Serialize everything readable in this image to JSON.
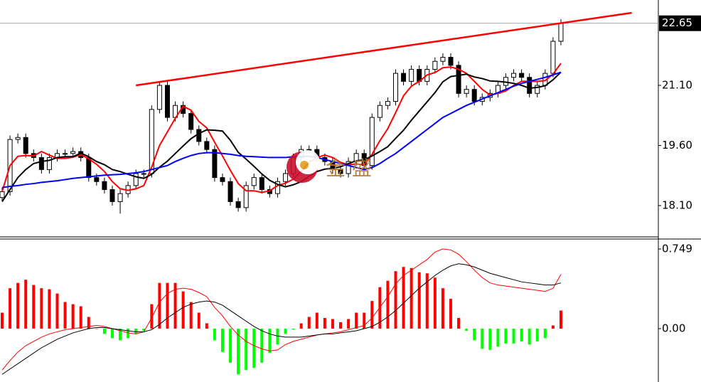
{
  "chart_data": [
    {
      "type": "candlestick",
      "open": [
        18.3,
        18.45,
        19.75,
        19.8,
        19.4,
        19.3,
        19.0,
        19.3,
        19.4,
        19.4,
        19.45,
        19.3,
        18.8,
        18.7,
        18.5,
        18.2,
        18.4,
        18.6,
        18.9,
        18.9,
        20.5,
        21.1,
        20.3,
        20.6,
        20.4,
        20.0,
        19.7,
        19.5,
        18.8,
        18.7,
        18.2,
        18.05,
        18.6,
        18.8,
        18.5,
        18.4,
        18.7,
        18.9,
        19.3,
        19.5,
        19.5,
        19.3,
        19.2,
        19.0,
        18.9,
        19.2,
        19.4,
        19.1,
        20.3,
        20.6,
        20.7,
        21.4,
        21.2,
        21.5,
        21.2,
        21.5,
        21.7,
        21.8,
        21.6,
        20.9,
        21.0,
        20.7,
        20.8,
        20.9,
        21.1,
        21.3,
        21.4,
        21.3,
        20.9,
        21.1,
        21.4,
        22.2
      ],
      "high": [
        18.55,
        19.85,
        19.9,
        19.9,
        19.5,
        19.4,
        19.4,
        19.5,
        19.5,
        19.55,
        19.55,
        19.4,
        18.9,
        18.8,
        18.6,
        18.5,
        18.7,
        19.0,
        19.0,
        20.6,
        21.2,
        21.2,
        20.7,
        20.7,
        20.5,
        20.1,
        19.8,
        19.6,
        18.9,
        18.8,
        18.3,
        18.7,
        18.9,
        18.9,
        18.6,
        18.8,
        19.0,
        19.4,
        19.6,
        19.6,
        19.6,
        19.4,
        19.3,
        19.1,
        19.3,
        19.5,
        19.5,
        20.4,
        20.7,
        20.8,
        21.5,
        21.5,
        21.6,
        21.6,
        21.6,
        21.8,
        21.9,
        21.9,
        21.7,
        21.1,
        21.1,
        20.9,
        21.0,
        21.2,
        21.4,
        21.5,
        21.5,
        21.4,
        21.2,
        21.5,
        22.3,
        22.75
      ],
      "low": [
        18.2,
        18.35,
        19.65,
        19.3,
        19.2,
        18.9,
        18.9,
        19.2,
        19.3,
        19.3,
        19.2,
        18.7,
        18.6,
        18.4,
        18.1,
        17.9,
        18.3,
        18.5,
        18.8,
        18.8,
        20.4,
        20.2,
        20.2,
        20.3,
        19.9,
        19.6,
        19.4,
        18.7,
        18.6,
        18.1,
        17.95,
        17.95,
        18.5,
        18.4,
        18.3,
        18.3,
        18.6,
        18.8,
        19.2,
        19.4,
        19.2,
        19.1,
        18.9,
        18.8,
        18.8,
        19.1,
        19.0,
        19.0,
        20.2,
        20.5,
        20.6,
        21.1,
        21.1,
        21.1,
        21.1,
        21.4,
        21.6,
        21.5,
        20.8,
        20.8,
        20.6,
        20.6,
        20.7,
        20.8,
        21.0,
        21.2,
        21.2,
        20.8,
        20.8,
        21.0,
        21.3,
        22.1
      ],
      "close": [
        18.45,
        19.75,
        19.8,
        19.4,
        19.3,
        19.0,
        19.3,
        19.4,
        19.4,
        19.45,
        19.3,
        18.8,
        18.7,
        18.5,
        18.2,
        18.4,
        18.6,
        18.9,
        18.9,
        20.5,
        21.1,
        20.3,
        20.6,
        20.4,
        20.0,
        19.7,
        19.5,
        18.8,
        18.7,
        18.2,
        18.05,
        18.6,
        18.8,
        18.5,
        18.4,
        18.7,
        18.9,
        19.3,
        19.5,
        19.5,
        19.3,
        19.2,
        19.0,
        18.9,
        19.2,
        19.4,
        19.1,
        20.3,
        20.6,
        20.7,
        21.4,
        21.2,
        21.5,
        21.2,
        21.5,
        21.7,
        21.8,
        21.6,
        20.9,
        21.0,
        20.7,
        20.8,
        20.9,
        21.1,
        21.3,
        21.4,
        21.3,
        20.9,
        21.1,
        21.4,
        22.2,
        22.65
      ],
      "lines": [
        {
          "color": "#ff0000",
          "values": [
            18.45,
            19.1,
            19.33,
            19.35,
            19.34,
            19.45,
            19.36,
            19.28,
            19.28,
            19.31,
            19.37,
            19.27,
            19.13,
            18.95,
            18.7,
            18.52,
            18.48,
            18.52,
            18.6,
            19.06,
            19.6,
            19.94,
            20.28,
            20.58,
            20.48,
            20.2,
            20.04,
            19.68,
            19.34,
            18.98,
            18.65,
            18.47,
            18.47,
            18.43,
            18.47,
            18.6,
            18.66,
            18.76,
            18.96,
            19.18,
            19.3,
            19.36,
            19.3,
            19.18,
            19.12,
            19.14,
            19.12,
            19.38,
            19.72,
            20.02,
            20.42,
            20.84,
            21.08,
            21.2,
            21.36,
            21.42,
            21.54,
            21.56,
            21.5,
            21.4,
            21.2,
            21.0,
            20.86,
            20.9,
            20.96,
            21.1,
            21.2,
            21.2,
            21.2,
            21.22,
            21.38,
            21.65
          ]
        },
        {
          "color": "#000000",
          "values": [
            18.2,
            18.5,
            18.8,
            19.0,
            19.15,
            19.2,
            19.23,
            19.3,
            19.32,
            19.32,
            19.41,
            19.32,
            19.2,
            19.12,
            19.0,
            18.95,
            18.88,
            18.82,
            18.78,
            18.88,
            19.06,
            19.21,
            19.4,
            19.59,
            19.77,
            19.9,
            19.99,
            19.98,
            19.96,
            19.73,
            19.43,
            19.26,
            19.08,
            18.89,
            18.73,
            18.63,
            18.57,
            18.62,
            18.7,
            18.83,
            18.95,
            19.01,
            19.03,
            19.07,
            19.15,
            19.22,
            19.24,
            19.34,
            19.45,
            19.57,
            19.78,
            19.98,
            20.23,
            20.46,
            20.69,
            20.92,
            21.19,
            21.32,
            21.35,
            21.38,
            21.31,
            21.27,
            21.21,
            21.2,
            21.18,
            21.15,
            21.1,
            21.03,
            21.05,
            21.09,
            21.24,
            21.43
          ]
        },
        {
          "color": "#0000ff",
          "values": [
            18.55,
            18.58,
            18.6,
            18.63,
            18.65,
            18.68,
            18.7,
            18.72,
            18.75,
            18.78,
            18.8,
            18.82,
            18.84,
            18.86,
            18.87,
            18.88,
            18.9,
            18.92,
            18.95,
            19.0,
            19.05,
            19.1,
            19.2,
            19.28,
            19.35,
            19.4,
            19.42,
            19.42,
            19.4,
            19.38,
            19.35,
            19.33,
            19.32,
            19.31,
            19.3,
            19.3,
            19.3,
            19.32,
            19.33,
            19.33,
            19.3,
            19.25,
            19.2,
            19.15,
            19.1,
            19.05,
            19.0,
            19.05,
            19.15,
            19.28,
            19.4,
            19.55,
            19.7,
            19.85,
            20.0,
            20.15,
            20.3,
            20.4,
            20.5,
            20.6,
            20.68,
            20.76,
            20.84,
            20.92,
            21.0,
            21.08,
            21.15,
            21.2,
            21.25,
            21.3,
            21.36,
            21.43
          ]
        }
      ],
      "trendline": {
        "x": [
          17,
          80
        ],
        "y": [
          21.1,
          22.91
        ],
        "color": "#ff0000"
      },
      "last_price": 22.65,
      "ylim": [
        17.32,
        23.23
      ],
      "yticks": [
        {
          "value": 18.1,
          "label": "18.10"
        },
        {
          "value": 19.6,
          "label": "19.60"
        },
        {
          "value": 21.1,
          "label": "21.10"
        }
      ],
      "watermark": "金 盛"
    },
    {
      "type": "macd",
      "values": [
        0.15,
        0.38,
        0.43,
        0.46,
        0.41,
        0.38,
        0.37,
        0.33,
        0.25,
        0.23,
        0.21,
        0.11,
        0.0,
        -0.05,
        -0.09,
        -0.11,
        -0.09,
        -0.05,
        -0.02,
        0.23,
        0.43,
        0.43,
        0.43,
        0.35,
        0.25,
        0.15,
        0.05,
        -0.11,
        -0.22,
        -0.32,
        -0.43,
        -0.39,
        -0.37,
        -0.32,
        -0.23,
        -0.15,
        -0.05,
        -0.01,
        0.05,
        0.11,
        0.15,
        0.1,
        0.09,
        0.06,
        0.09,
        0.15,
        0.15,
        0.26,
        0.39,
        0.45,
        0.54,
        0.58,
        0.57,
        0.53,
        0.52,
        0.48,
        0.38,
        0.28,
        0.1,
        -0.02,
        -0.11,
        -0.19,
        -0.2,
        -0.17,
        -0.14,
        -0.14,
        -0.12,
        -0.15,
        -0.12,
        -0.09,
        0.03,
        0.17
      ],
      "colors": {
        "positive": "#ff0000",
        "negative": "#00ff00"
      },
      "lines": [
        {
          "color": "#ff0000",
          "values": [
            -0.39,
            -0.3,
            -0.22,
            -0.16,
            -0.12,
            -0.08,
            -0.05,
            -0.03,
            -0.01,
            0.0,
            0.01,
            0.02,
            0.03,
            0.02,
            0.0,
            -0.02,
            -0.04,
            -0.05,
            -0.03,
            0.1,
            0.25,
            0.33,
            0.37,
            0.38,
            0.37,
            0.34,
            0.3,
            0.2,
            0.12,
            0.02,
            -0.06,
            -0.12,
            -0.16,
            -0.19,
            -0.21,
            -0.2,
            -0.15,
            -0.12,
            -0.1,
            -0.08,
            -0.06,
            -0.05,
            -0.04,
            -0.03,
            -0.01,
            0.01,
            0.03,
            0.1,
            0.2,
            0.3,
            0.42,
            0.5,
            0.55,
            0.6,
            0.65,
            0.72,
            0.75,
            0.74,
            0.7,
            0.63,
            0.55,
            0.48,
            0.43,
            0.41,
            0.4,
            0.39,
            0.38,
            0.37,
            0.36,
            0.35,
            0.38,
            0.51
          ]
        },
        {
          "color": "#000000",
          "values": [
            -0.43,
            -0.38,
            -0.33,
            -0.28,
            -0.23,
            -0.18,
            -0.14,
            -0.1,
            -0.07,
            -0.04,
            -0.02,
            0.0,
            0.01,
            0.01,
            0.0,
            -0.01,
            -0.02,
            -0.03,
            -0.03,
            -0.01,
            0.04,
            0.1,
            0.15,
            0.2,
            0.23,
            0.25,
            0.26,
            0.25,
            0.22,
            0.17,
            0.12,
            0.07,
            0.02,
            -0.02,
            -0.05,
            -0.07,
            -0.08,
            -0.08,
            -0.08,
            -0.07,
            -0.06,
            -0.05,
            -0.05,
            -0.04,
            -0.03,
            -0.02,
            0.0,
            0.02,
            0.06,
            0.11,
            0.17,
            0.24,
            0.31,
            0.38,
            0.44,
            0.5,
            0.55,
            0.59,
            0.61,
            0.6,
            0.58,
            0.55,
            0.52,
            0.5,
            0.48,
            0.46,
            0.44,
            0.43,
            0.42,
            0.41,
            0.41,
            0.43
          ]
        }
      ],
      "ylim": [
        -0.502,
        0.836
      ],
      "yticks": [
        {
          "value": 0,
          "label": "0.00"
        },
        0.749
      ]
    }
  ]
}
